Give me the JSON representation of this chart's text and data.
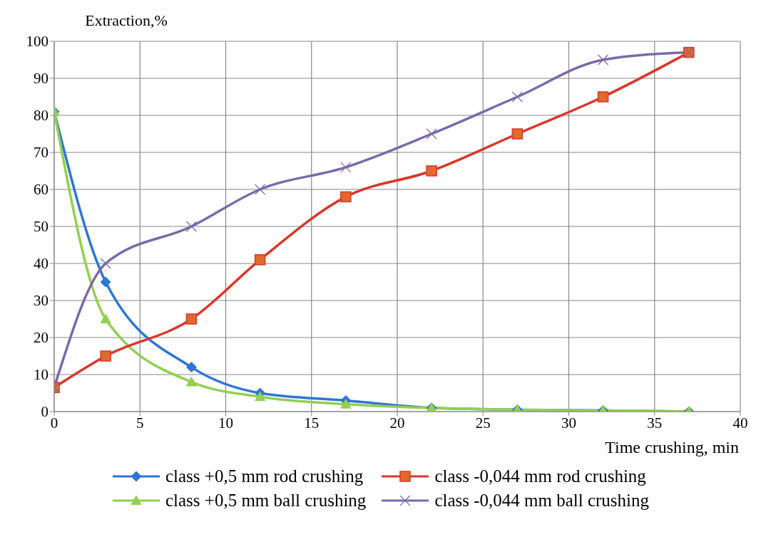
{
  "chart_data": {
    "type": "line",
    "xlabel": "Time crushing, min",
    "ylabel": "Extraction,%",
    "xlim": [
      0,
      40
    ],
    "xticks": [
      0,
      5,
      10,
      15,
      20,
      25,
      30,
      35,
      40
    ],
    "ylim": [
      0,
      100
    ],
    "yticks": [
      0,
      10,
      20,
      30,
      40,
      50,
      60,
      70,
      80,
      90,
      100
    ],
    "grid": true,
    "legend": "bottom",
    "x": [
      0,
      3,
      8,
      12,
      17,
      22,
      27,
      32,
      37
    ],
    "series": [
      {
        "name": "class +0,5 mm rod crushing",
        "color": "#2e75d6",
        "marker": "diamond",
        "values": [
          81,
          35,
          12,
          5,
          3,
          1,
          0.5,
          0.3,
          0
        ]
      },
      {
        "name": "class +0,5 mm ball crushing",
        "color": "#92d050",
        "marker": "triangle",
        "values": [
          81,
          25,
          8,
          4,
          2,
          1,
          0.5,
          0.3,
          0
        ]
      },
      {
        "name": "class -0,044 mm rod crushing",
        "color": "#d9372b",
        "marker": "square",
        "values": [
          6.5,
          15,
          25,
          41,
          58,
          65,
          75,
          85,
          97
        ]
      },
      {
        "name": "class -0,044 mm ball crushing",
        "color": "#7a6aa8",
        "marker": "cross",
        "values": [
          6.5,
          40,
          50,
          60,
          66,
          75,
          85,
          95,
          97
        ]
      }
    ]
  }
}
